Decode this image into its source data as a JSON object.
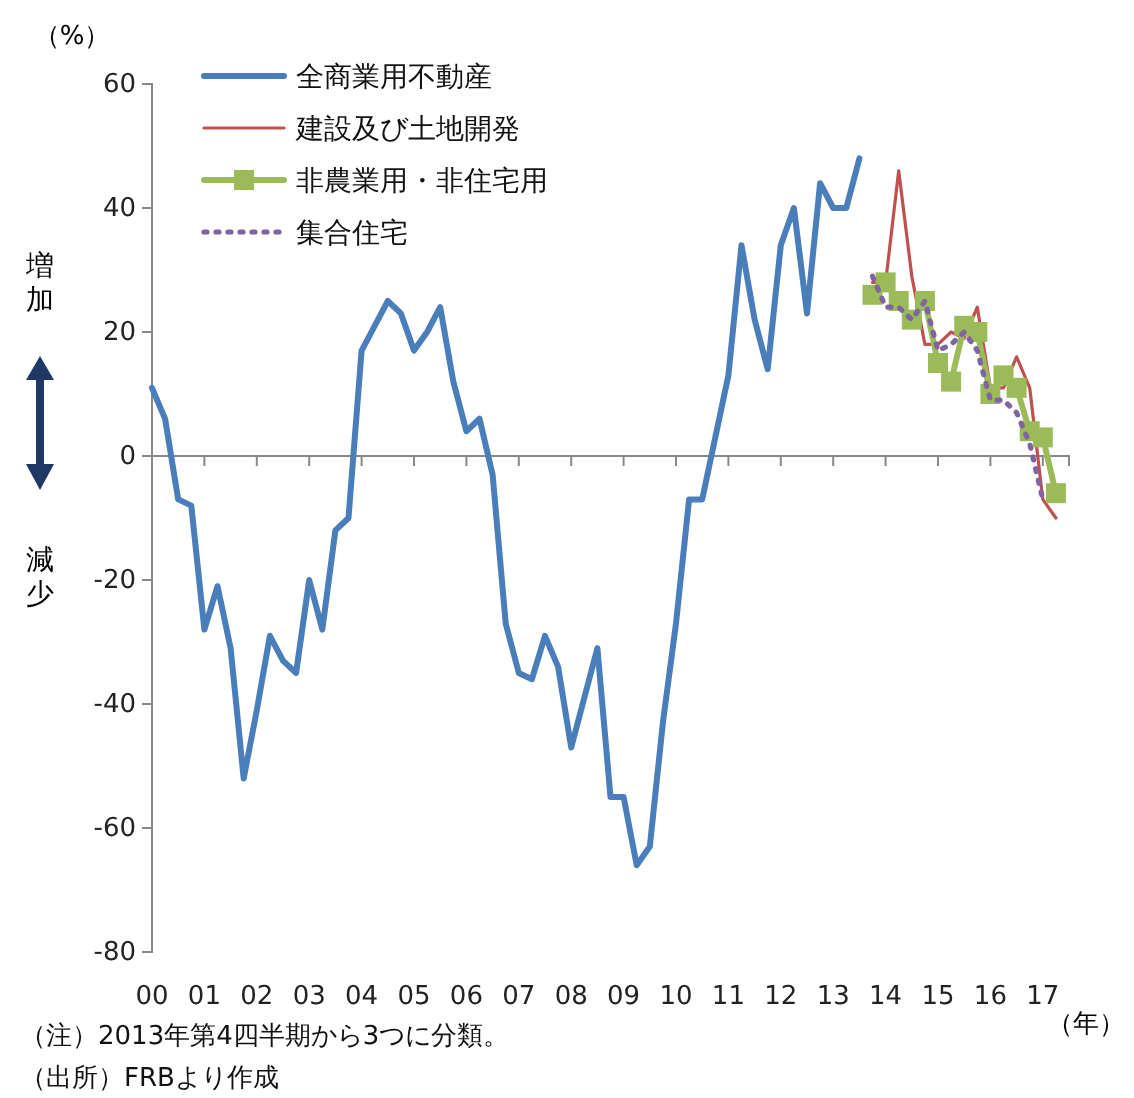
{
  "chart_data": {
    "type": "line",
    "ylabel": "（%）",
    "xlabel": "（年）",
    "xlim": [
      2000,
      2017.5
    ],
    "xticks": [
      {
        "value": 2000,
        "label": "00"
      },
      {
        "value": 2001,
        "label": "01"
      },
      {
        "value": 2002,
        "label": "02"
      },
      {
        "value": 2003,
        "label": "03"
      },
      {
        "value": 2004,
        "label": "04"
      },
      {
        "value": 2005,
        "label": "05"
      },
      {
        "value": 2006,
        "label": "06"
      },
      {
        "value": 2007,
        "label": "07"
      },
      {
        "value": 2008,
        "label": "08"
      },
      {
        "value": 2009,
        "label": "09"
      },
      {
        "value": 2010,
        "label": "10"
      },
      {
        "value": 2011,
        "label": "11"
      },
      {
        "value": 2012,
        "label": "12"
      },
      {
        "value": 2013,
        "label": "13"
      },
      {
        "value": 2014,
        "label": "14"
      },
      {
        "value": 2015,
        "label": "15"
      },
      {
        "value": 2016,
        "label": "16"
      },
      {
        "value": 2017,
        "label": "17"
      }
    ],
    "ylim": [
      -80,
      60
    ],
    "yticks": [
      -80,
      -60,
      -40,
      -20,
      0,
      20,
      40,
      60
    ],
    "grid": false,
    "legend": "top left",
    "series": [
      {
        "name": "全商業用不動産",
        "color": "#4a7ebb",
        "marker": "none",
        "line_style": "solid",
        "x": [
          2000,
          2000.25,
          2000.5,
          2000.75,
          2001,
          2001.25,
          2001.5,
          2001.75,
          2002,
          2002.25,
          2002.5,
          2002.75,
          2003,
          2003.25,
          2003.5,
          2003.75,
          2004,
          2004.25,
          2004.5,
          2004.75,
          2005,
          2005.25,
          2005.5,
          2005.75,
          2006,
          2006.25,
          2006.5,
          2006.75,
          2007,
          2007.25,
          2007.5,
          2007.75,
          2008,
          2008.25,
          2008.5,
          2008.75,
          2009,
          2009.25,
          2009.5,
          2009.75,
          2010,
          2010.25,
          2010.5,
          2010.75,
          2011,
          2011.25,
          2011.5,
          2011.75,
          2012,
          2012.25,
          2012.5,
          2012.75,
          2013,
          2013.25,
          2013.5
        ],
        "values": [
          11,
          6,
          -7,
          -8,
          -28,
          -21,
          -31,
          -52,
          -41,
          -29,
          -33,
          -35,
          -20,
          -28,
          -12,
          -10,
          17,
          21,
          25,
          23,
          17,
          20,
          24,
          12,
          4,
          6,
          -3,
          -27,
          -35,
          -36,
          -29,
          -34,
          -47,
          -39,
          -31,
          -55,
          -55,
          -66,
          -63,
          -43,
          -27,
          -7,
          -7,
          3,
          13,
          34,
          22,
          14,
          34,
          40,
          23,
          44,
          40,
          40,
          48
        ]
      },
      {
        "name": "建設及び土地開発",
        "color": "#c0504d",
        "marker": "none",
        "line_style": "solid",
        "x": [
          2013.75,
          2014,
          2014.25,
          2014.5,
          2014.75,
          2015,
          2015.25,
          2015.5,
          2015.75,
          2016,
          2016.25,
          2016.5,
          2016.75,
          2017,
          2017.25
        ],
        "values": [
          28,
          28,
          46,
          29,
          18,
          18,
          20,
          19,
          24,
          11,
          11,
          16,
          11,
          -7,
          -10
        ]
      },
      {
        "name": "非農業用・非住宅用",
        "color": "#9bbb59",
        "marker": "square",
        "line_style": "solid",
        "x": [
          2013.75,
          2014,
          2014.25,
          2014.5,
          2014.75,
          2015,
          2015.25,
          2015.5,
          2015.75,
          2016,
          2016.25,
          2016.5,
          2016.75,
          2017,
          2017.25
        ],
        "values": [
          26,
          28,
          25,
          22,
          25,
          15,
          12,
          21,
          20,
          10,
          13,
          11,
          4,
          3,
          -6
        ]
      },
      {
        "name": "集合住宅",
        "color": "#8064a2",
        "marker": "none",
        "line_style": "dotted",
        "x": [
          2013.75,
          2014,
          2014.25,
          2014.5,
          2014.75,
          2015,
          2015.25,
          2015.5,
          2015.75,
          2016,
          2016.25,
          2016.5,
          2016.75,
          2017
        ],
        "values": [
          29,
          24,
          24,
          22,
          25,
          17,
          18,
          20,
          17,
          9,
          9,
          7,
          2,
          -7
        ]
      }
    ],
    "annotations": [
      "増加",
      "減少",
      "（注）2013年第4四半期から3つに分類。",
      "（出所）FRBより作成"
    ]
  }
}
